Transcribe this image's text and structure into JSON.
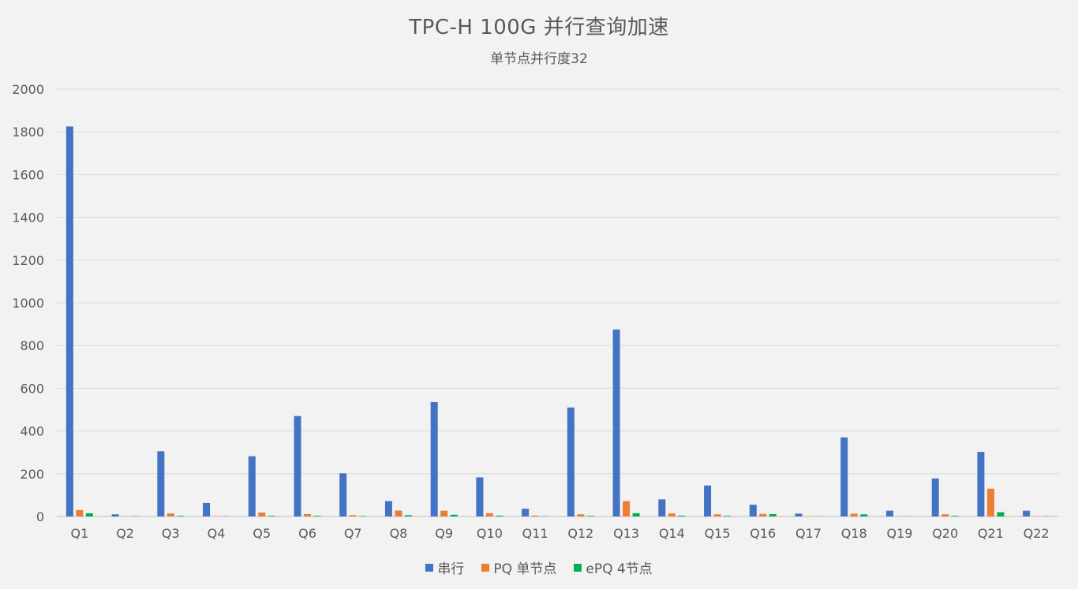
{
  "chart_data": {
    "type": "bar",
    "title": "TPC-H 100G 并行查询加速",
    "subtitle": "单节点并行度32",
    "xlabel": "",
    "ylabel": "",
    "ylim": [
      0,
      2000
    ],
    "yticks": [
      0,
      200,
      400,
      600,
      800,
      1000,
      1200,
      1400,
      1600,
      1800,
      2000
    ],
    "grid": true,
    "legend_position": "bottom",
    "categories": [
      "Q1",
      "Q2",
      "Q3",
      "Q4",
      "Q5",
      "Q6",
      "Q7",
      "Q8",
      "Q9",
      "Q10",
      "Q11",
      "Q12",
      "Q13",
      "Q14",
      "Q15",
      "Q16",
      "Q17",
      "Q18",
      "Q19",
      "Q20",
      "Q21",
      "Q22"
    ],
    "series": [
      {
        "name": "串行",
        "color": "#4472c4",
        "values": [
          1825,
          10,
          305,
          63,
          282,
          470,
          202,
          72,
          535,
          183,
          36,
          510,
          875,
          80,
          145,
          55,
          13,
          370,
          27,
          178,
          302,
          27
        ]
      },
      {
        "name": "PQ 单节点",
        "color": "#ed7d31",
        "values": [
          30,
          1,
          14,
          1,
          18,
          11,
          6,
          28,
          27,
          15,
          4,
          10,
          72,
          14,
          10,
          12,
          1,
          13,
          1,
          10,
          130,
          1
        ]
      },
      {
        "name": "ePQ 4节点",
        "color": "#00b050",
        "values": [
          15,
          1,
          3,
          1,
          3,
          3,
          2,
          6,
          8,
          4,
          1,
          3,
          15,
          4,
          3,
          11,
          1,
          10,
          1,
          3,
          20,
          1
        ]
      }
    ]
  }
}
